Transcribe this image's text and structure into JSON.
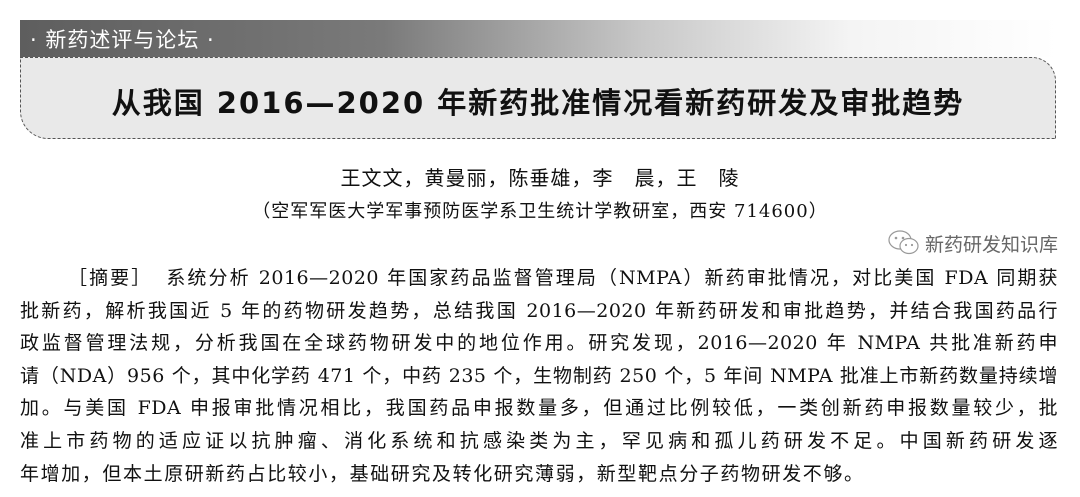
{
  "header": {
    "section_label": "· 新药述评与论坛 ·",
    "title": "从我国 2016—2020 年新药批准情况看新药研发及审批趋势"
  },
  "byline": {
    "authors": "王文文，黄曼丽，陈垂雄，李　晨，王　陵",
    "affiliation": "（空军军医大学军事预防医学系卫生统计学教研室，西安 714600）"
  },
  "abstract": {
    "label": "［摘要］",
    "lines": [
      "系统分析 2016—2020 年国家药品监督管理局（NMPA）新药审批情况，对比美国 FDA 同期获",
      "批新药，解析我国近 5 年的药物研发趋势，总结我国 2016—2020 年新药研发和审批趋势，并结合我国药品行",
      "政监督管理法规，分析我国在全球药物研发中的地位作用。研究发现，2016—2020 年 NMPA 共批准新药申",
      "请（NDA）956 个，其中化学药 471 个，中药 235 个，生物制药 250 个，5 年间 NMPA 批准上市新药数量持续增",
      "加。与美国 FDA 申报审批情况相比，我国药品申报数量多，但通过比例较低，一类创新药申报数量较少，批",
      "准上市药物的适应证以抗肿瘤、消化系统和抗感染类为主，罕见病和孤儿药研发不足。中国新药研发逐",
      "年增加，但本土原研新药占比较小，基础研究及转化研究薄弱，新型靶点分子药物研发不够。"
    ]
  },
  "watermark": {
    "text": "新药研发知识库",
    "icon": "wechat-icon"
  }
}
